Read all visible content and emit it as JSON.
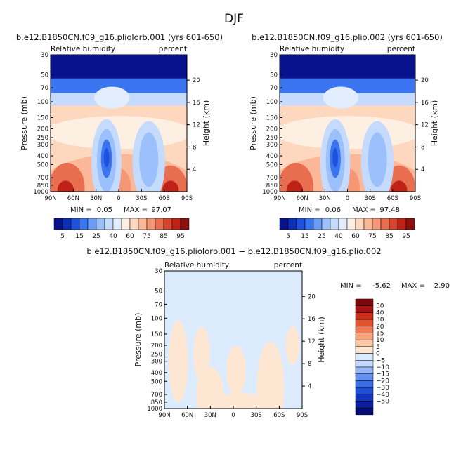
{
  "title": "DJF",
  "colors": {
    "rh_levels": [
      "#08128c",
      "#0b2fb4",
      "#1e52dc",
      "#3a74ee",
      "#6a9ef6",
      "#9bc0fb",
      "#c4dbfd",
      "#e2edfe",
      "#fdf0e3",
      "#fdd8bf",
      "#fbb898",
      "#f59674",
      "#e96e50",
      "#d84430",
      "#bf2216",
      "#8e0f0f"
    ],
    "diff_levels": [
      "#050a78",
      "#0a1e9e",
      "#1236c0",
      "#1f4fd8",
      "#3a6ee8",
      "#6691f2",
      "#97b6f8",
      "#c4d9fc",
      "#dcebfd",
      "#fde7d2",
      "#fcc8a5",
      "#f9a57c",
      "#f07a55",
      "#e2522f",
      "#cc2c18",
      "#a31414",
      "#7a0808"
    ]
  },
  "chart_data": [
    {
      "type": "heatmap",
      "title": "b.e12.B1850CN.f09_g16.pliolorb.001 (yrs 601-650)",
      "field_label": "Relative humidity",
      "units_label": "percent",
      "ylabel": "Pressure (mb)",
      "ylabel_right": "Height (km)",
      "x_ticks": [
        "90N",
        "60N",
        "30N",
        "0",
        "30S",
        "60S",
        "90S"
      ],
      "y_ticks": [
        "30",
        "50",
        "70",
        "100",
        "150",
        "200",
        "250",
        "300",
        "400",
        "500",
        "700",
        "850",
        "1000"
      ],
      "height_ticks": [
        "20",
        "16",
        "12",
        "8",
        "4"
      ],
      "stats": {
        "min_label": "MIN =",
        "min": "0.05",
        "max_label": "MAX =",
        "max": "97.07"
      }
    },
    {
      "type": "heatmap",
      "title": "b.e12.B1850CN.f09_g16.plio.002 (yrs 601-650)",
      "field_label": "Relative humidity",
      "units_label": "percent",
      "ylabel": "Pressure (mb)",
      "ylabel_right": "Height (km)",
      "x_ticks": [
        "90N",
        "60N",
        "30N",
        "0",
        "30S",
        "60S",
        "90S"
      ],
      "y_ticks": [
        "30",
        "50",
        "70",
        "100",
        "150",
        "200",
        "250",
        "300",
        "400",
        "500",
        "700",
        "850",
        "1000"
      ],
      "height_ticks": [
        "20",
        "16",
        "12",
        "8",
        "4"
      ],
      "stats": {
        "min_label": "MIN =",
        "min": "0.06",
        "max_label": "MAX =",
        "max": "97.48"
      }
    },
    {
      "type": "heatmap",
      "title": "b.e12.B1850CN.f09_g16.pliolorb.001 − b.e12.B1850CN.f09_g16.plio.002",
      "field_label": "Relative humidity",
      "units_label": "percent",
      "ylabel": "Pressure (mb)",
      "ylabel_right": "Height (km)",
      "x_ticks": [
        "90N",
        "60N",
        "30N",
        "0",
        "30S",
        "60S",
        "90S"
      ],
      "y_ticks": [
        "30",
        "50",
        "70",
        "100",
        "150",
        "200",
        "250",
        "300",
        "400",
        "500",
        "700",
        "850",
        "1000"
      ],
      "height_ticks": [
        "20",
        "16",
        "12",
        "8",
        "4"
      ],
      "stats": {
        "min_label": "MIN =",
        "min": "-5.62",
        "max_label": "MAX =",
        "max": "2.90"
      }
    }
  ],
  "colorbar_rh": {
    "labels": [
      "5",
      "15",
      "25",
      "40",
      "60",
      "75",
      "85",
      "95"
    ]
  },
  "colorbar_diff": {
    "labels": [
      "50",
      "40",
      "30",
      "20",
      "15",
      "10",
      "5",
      "0",
      "−5",
      "−10",
      "−15",
      "−20",
      "−30",
      "−40",
      "−50"
    ]
  }
}
